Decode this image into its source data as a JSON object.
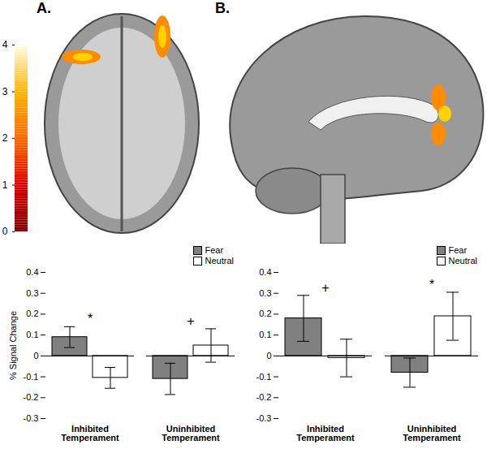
{
  "figure": {
    "panel_labels": [
      "A.",
      "B."
    ],
    "colorbar": {
      "range": [
        0,
        4
      ],
      "ticks": [
        0,
        1,
        2,
        3,
        4
      ]
    }
  },
  "chart_data": [
    {
      "type": "bar",
      "y_label": "% Signal Change",
      "categories": [
        "Inhibited Temperament",
        "Uninhibited Temperament"
      ],
      "series": [
        {
          "name": "Fear",
          "color": "#808080",
          "values": [
            0.09,
            -0.11
          ],
          "errors": [
            0.05,
            0.075
          ]
        },
        {
          "name": "Neutral",
          "color": "#ffffff",
          "values": [
            -0.105,
            0.05
          ],
          "errors": [
            0.05,
            0.08
          ]
        }
      ],
      "ylim": [
        -0.3,
        0.4
      ],
      "yticks": [
        -0.3,
        -0.2,
        -0.1,
        0,
        0.1,
        0.2,
        0.3,
        0.4
      ],
      "legend": "top-right",
      "annotations": [
        {
          "category": "Inhibited Temperament",
          "text": "*"
        },
        {
          "category": "Uninhibited Temperament",
          "text": "+"
        }
      ]
    },
    {
      "type": "bar",
      "categories": [
        "Inhibited Temperament",
        "Uninhibited Temperament"
      ],
      "series": [
        {
          "name": "Fear",
          "color": "#808080",
          "values": [
            0.18,
            -0.08
          ],
          "errors": [
            0.11,
            0.07
          ]
        },
        {
          "name": "Neutral",
          "color": "#ffffff",
          "values": [
            -0.01,
            0.19
          ],
          "errors": [
            0.09,
            0.115
          ]
        }
      ],
      "ylim": [
        -0.3,
        0.4
      ],
      "yticks": [
        -0.3,
        -0.2,
        -0.1,
        0,
        0.1,
        0.2,
        0.3,
        0.4
      ],
      "legend": "top-right",
      "annotations": [
        {
          "category": "Inhibited Temperament",
          "text": "+"
        },
        {
          "category": "Uninhibited Temperament",
          "text": "*"
        }
      ]
    }
  ]
}
